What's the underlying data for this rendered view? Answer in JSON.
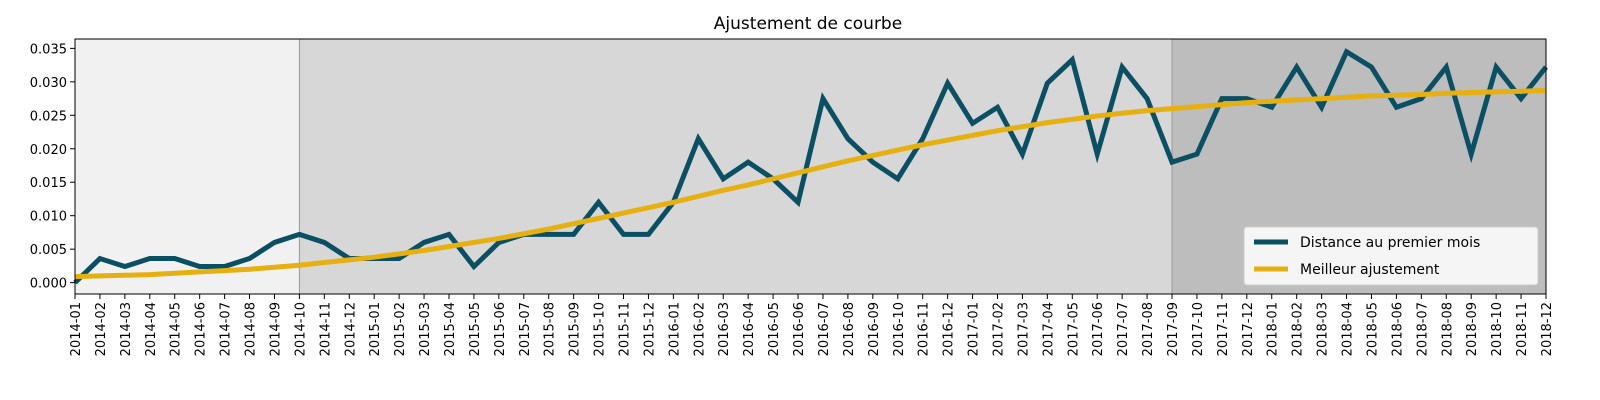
{
  "chart_data": {
    "type": "line",
    "title": "Ajustement de courbe",
    "xlabel": "",
    "ylabel": "",
    "ylim": [
      -0.0017,
      0.0364
    ],
    "yticks": [
      "0.000",
      "0.005",
      "0.010",
      "0.015",
      "0.020",
      "0.025",
      "0.030",
      "0.035"
    ],
    "ytick_values": [
      0,
      0.005,
      0.01,
      0.015,
      0.02,
      0.025,
      0.03,
      0.035
    ],
    "grid": false,
    "legend_position": "lower-right",
    "x": [
      "2014-01",
      "2014-02",
      "2014-03",
      "2014-04",
      "2014-05",
      "2014-06",
      "2014-07",
      "2014-08",
      "2014-09",
      "2014-10",
      "2014-11",
      "2014-12",
      "2015-01",
      "2015-02",
      "2015-03",
      "2015-04",
      "2015-05",
      "2015-06",
      "2015-07",
      "2015-08",
      "2015-09",
      "2015-10",
      "2015-11",
      "2015-12",
      "2016-01",
      "2016-02",
      "2016-03",
      "2016-04",
      "2016-05",
      "2016-06",
      "2016-07",
      "2016-08",
      "2016-09",
      "2016-10",
      "2016-11",
      "2016-12",
      "2017-01",
      "2017-02",
      "2017-03",
      "2017-04",
      "2017-05",
      "2017-06",
      "2017-07",
      "2017-08",
      "2017-09",
      "2017-10",
      "2017-11",
      "2017-12",
      "2018-01",
      "2018-02",
      "2018-03",
      "2018-04",
      "2018-05",
      "2018-06",
      "2018-07",
      "2018-08",
      "2018-09",
      "2018-10",
      "2018-11",
      "2018-12"
    ],
    "series": [
      {
        "name": "Distance au premier mois",
        "color": "#0b4f63",
        "values": [
          0.0,
          0.0036,
          0.0024,
          0.0036,
          0.0036,
          0.0024,
          0.0024,
          0.0036,
          0.006,
          0.0072,
          0.006,
          0.0036,
          0.0036,
          0.0036,
          0.006,
          0.0072,
          0.0024,
          0.006,
          0.0072,
          0.0072,
          0.0072,
          0.012,
          0.0072,
          0.0072,
          0.012,
          0.0215,
          0.0155,
          0.018,
          0.0155,
          0.012,
          0.0275,
          0.0215,
          0.018,
          0.0155,
          0.0215,
          0.0298,
          0.0238,
          0.0262,
          0.0192,
          0.0298,
          0.0333,
          0.0192,
          0.0322,
          0.0275,
          0.018,
          0.0192,
          0.0275,
          0.0275,
          0.0262,
          0.0322,
          0.0262,
          0.0345,
          0.0322,
          0.0262,
          0.0275,
          0.0322,
          0.0192,
          0.0322,
          0.0275,
          0.0322
        ]
      },
      {
        "name": "Meilleur ajustement",
        "color": "#e6b010",
        "values": [
          0.0009,
          0.001,
          0.0011,
          0.0012,
          0.0014,
          0.0016,
          0.0018,
          0.002,
          0.0023,
          0.0026,
          0.003,
          0.0034,
          0.0038,
          0.0043,
          0.0048,
          0.0054,
          0.006,
          0.0066,
          0.0073,
          0.008,
          0.0088,
          0.0096,
          0.0104,
          0.0112,
          0.012,
          0.0129,
          0.0138,
          0.0146,
          0.0155,
          0.0164,
          0.0173,
          0.0182,
          0.019,
          0.0198,
          0.0206,
          0.0213,
          0.022,
          0.0227,
          0.0233,
          0.0239,
          0.0244,
          0.0249,
          0.0253,
          0.0257,
          0.026,
          0.0263,
          0.0266,
          0.0269,
          0.0271,
          0.0273,
          0.0275,
          0.0277,
          0.0279,
          0.028,
          0.0281,
          0.0283,
          0.0284,
          0.0285,
          0.0286,
          0.0287
        ]
      }
    ],
    "shaded_regions": [
      {
        "from": "2014-01",
        "to": "2014-10",
        "color": "#f1f1f1"
      },
      {
        "from": "2014-10",
        "to": "2017-09",
        "color": "#d7d7d7"
      },
      {
        "from": "2017-09",
        "to": "2018-12",
        "color": "#bdbdbd"
      }
    ]
  }
}
